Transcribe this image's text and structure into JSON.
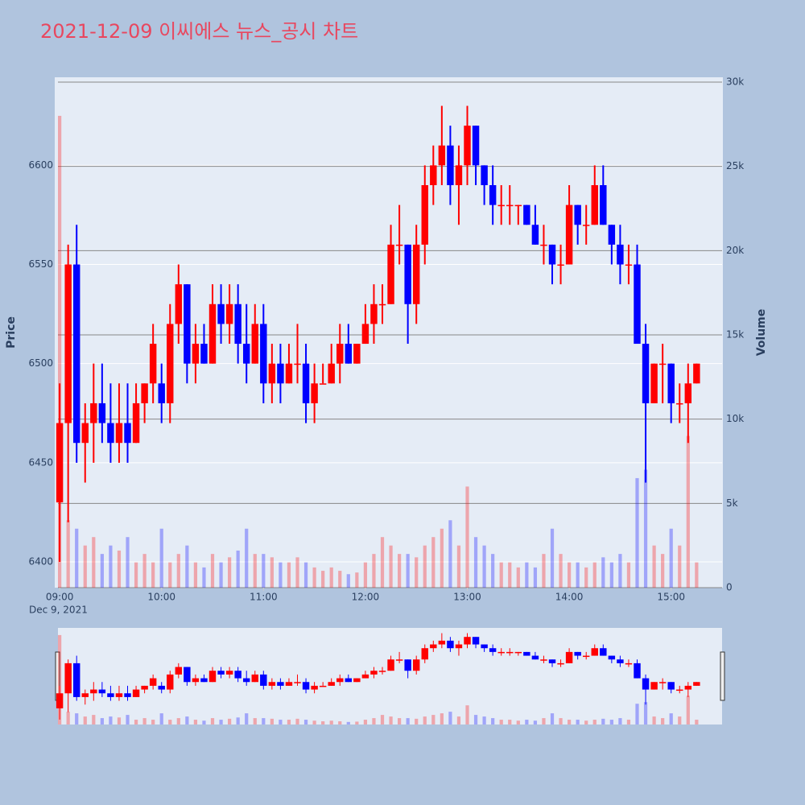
{
  "chart_data": {
    "type": "candlestick",
    "title": "2021-12-09 이씨에스 뉴스_공시 차트",
    "y_label": "Price",
    "y2_label": "Volume",
    "date_label": "Dec 9, 2021",
    "increasing_color": "#ff0000",
    "decreasing_color": "#0000ff",
    "x": [
      "09:00",
      "09:05",
      "09:10",
      "09:15",
      "09:20",
      "09:25",
      "09:30",
      "09:35",
      "09:40",
      "09:45",
      "09:50",
      "09:55",
      "10:00",
      "10:05",
      "10:10",
      "10:15",
      "10:20",
      "10:25",
      "10:30",
      "10:35",
      "10:40",
      "10:45",
      "10:50",
      "10:55",
      "11:00",
      "11:05",
      "11:10",
      "11:15",
      "11:20",
      "11:25",
      "11:30",
      "11:35",
      "11:40",
      "11:45",
      "11:50",
      "11:55",
      "12:00",
      "12:05",
      "12:10",
      "12:15",
      "12:20",
      "12:25",
      "12:30",
      "12:35",
      "12:40",
      "12:45",
      "12:50",
      "12:55",
      "13:00",
      "13:05",
      "13:10",
      "13:15",
      "13:20",
      "13:25",
      "13:30",
      "13:35",
      "13:40",
      "13:45",
      "13:50",
      "13:55",
      "14:00",
      "14:05",
      "14:10",
      "14:15",
      "14:20",
      "14:25",
      "14:30",
      "14:35",
      "14:40",
      "14:45",
      "14:50",
      "14:55",
      "15:00",
      "15:05",
      "15:10",
      "15:15"
    ],
    "open": [
      6430,
      6470,
      6550,
      6460,
      6470,
      6480,
      6470,
      6460,
      6470,
      6460,
      6480,
      6490,
      6490,
      6480,
      6520,
      6540,
      6500,
      6510,
      6500,
      6530,
      6520,
      6530,
      6510,
      6500,
      6520,
      6490,
      6500,
      6490,
      6500,
      6500,
      6480,
      6490,
      6490,
      6500,
      6510,
      6500,
      6510,
      6520,
      6530,
      6530,
      6560,
      6560,
      6530,
      6560,
      6590,
      6600,
      6610,
      6590,
      6600,
      6620,
      6600,
      6590,
      6580,
      6580,
      6580,
      6580,
      6570,
      6560,
      6560,
      6550,
      6550,
      6580,
      6570,
      6570,
      6590,
      6570,
      6560,
      6550,
      6550,
      6510,
      6480,
      6500,
      6500,
      6480,
      6480,
      6490
    ],
    "high": [
      6490,
      6560,
      6570,
      6480,
      6500,
      6500,
      6490,
      6490,
      6490,
      6490,
      6490,
      6520,
      6500,
      6530,
      6550,
      6540,
      6520,
      6520,
      6540,
      6540,
      6540,
      6540,
      6530,
      6530,
      6530,
      6510,
      6510,
      6510,
      6520,
      6510,
      6500,
      6500,
      6510,
      6520,
      6520,
      6510,
      6530,
      6540,
      6540,
      6570,
      6580,
      6560,
      6570,
      6600,
      6610,
      6630,
      6620,
      6610,
      6630,
      6620,
      6600,
      6600,
      6590,
      6590,
      6580,
      6580,
      6580,
      6570,
      6560,
      6560,
      6590,
      6580,
      6580,
      6600,
      6600,
      6570,
      6570,
      6560,
      6560,
      6520,
      6500,
      6510,
      6500,
      6490,
      6500,
      6500
    ],
    "low": [
      6400,
      6420,
      6450,
      6440,
      6450,
      6460,
      6450,
      6450,
      6450,
      6460,
      6470,
      6480,
      6470,
      6470,
      6510,
      6490,
      6490,
      6500,
      6500,
      6510,
      6510,
      6500,
      6490,
      6500,
      6480,
      6480,
      6480,
      6490,
      6490,
      6470,
      6470,
      6490,
      6490,
      6490,
      6500,
      6500,
      6510,
      6510,
      6520,
      6530,
      6550,
      6510,
      6520,
      6550,
      6580,
      6590,
      6580,
      6570,
      6590,
      6590,
      6580,
      6570,
      6570,
      6570,
      6570,
      6570,
      6560,
      6550,
      6540,
      6540,
      6550,
      6560,
      6560,
      6570,
      6570,
      6550,
      6540,
      6540,
      6510,
      6440,
      6480,
      6480,
      6470,
      6470,
      6460,
      6490
    ],
    "close": [
      6470,
      6550,
      6460,
      6470,
      6480,
      6470,
      6460,
      6470,
      6460,
      6480,
      6490,
      6510,
      6480,
      6520,
      6540,
      6500,
      6510,
      6500,
      6530,
      6520,
      6530,
      6510,
      6500,
      6520,
      6490,
      6500,
      6490,
      6500,
      6500,
      6480,
      6490,
      6490,
      6500,
      6510,
      6500,
      6510,
      6520,
      6530,
      6530,
      6560,
      6560,
      6530,
      6560,
      6590,
      6600,
      6610,
      6590,
      6600,
      6620,
      6600,
      6590,
      6580,
      6580,
      6580,
      6580,
      6570,
      6560,
      6560,
      6550,
      6550,
      6580,
      6570,
      6570,
      6590,
      6570,
      6560,
      6550,
      6550,
      6510,
      6480,
      6500,
      6500,
      6480,
      6480,
      6490,
      6500
    ],
    "volume": [
      28000,
      4000,
      3500,
      2500,
      3000,
      2000,
      2500,
      2200,
      3000,
      1500,
      2000,
      1500,
      3500,
      1500,
      2000,
      2500,
      1500,
      1200,
      2000,
      1500,
      1800,
      2200,
      3500,
      2000,
      2000,
      1800,
      1500,
      1500,
      1800,
      1500,
      1200,
      1000,
      1200,
      1000,
      800,
      900,
      1500,
      2000,
      3000,
      2500,
      2000,
      2000,
      1800,
      2500,
      3000,
      3500,
      4000,
      2500,
      6000,
      3000,
      2500,
      2000,
      1500,
      1500,
      1200,
      1500,
      1200,
      2000,
      3500,
      2000,
      1500,
      1500,
      1200,
      1500,
      1800,
      1500,
      2000,
      1500,
      6500,
      7000,
      2500,
      2000,
      3500,
      2500,
      9000,
      1500
    ],
    "xlim": [
      "08:59",
      "15:30"
    ],
    "xticks": [
      "09:00",
      "10:00",
      "11:00",
      "12:00",
      "13:00",
      "14:00",
      "15:00"
    ],
    "ylim": [
      6387,
      6644
    ],
    "yticks": [
      6400,
      6450,
      6500,
      6550,
      6600
    ],
    "y2lim": [
      0,
      30240
    ],
    "y2ticks": [
      0,
      {
        "value": 5000,
        "label": "5k"
      },
      {
        "value": 10000,
        "label": "10k"
      },
      {
        "value": 15000,
        "label": "15k"
      },
      {
        "value": 20000,
        "label": "20k"
      },
      {
        "value": 25000,
        "label": "25k"
      },
      {
        "value": 30000,
        "label": "30k"
      }
    ]
  }
}
